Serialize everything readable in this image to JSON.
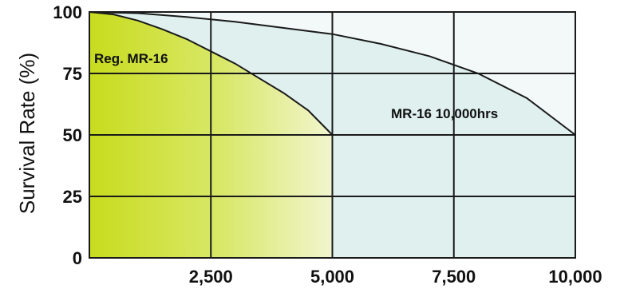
{
  "chart_data": {
    "type": "area",
    "title": "",
    "xlabel": "",
    "ylabel": "Survival Rate (%)",
    "xlim": [
      0,
      10000
    ],
    "ylim": [
      0,
      100
    ],
    "grid": true,
    "x_ticks": [
      2500,
      5000,
      7500,
      10000
    ],
    "x_tick_labels": [
      "2,500",
      "5,000",
      "7,500",
      "10,000"
    ],
    "y_ticks": [
      100,
      75,
      50,
      25,
      0
    ],
    "y_tick_labels": [
      "100",
      "75",
      "50",
      "25",
      "0"
    ],
    "series": [
      {
        "name": "MR-16 10,000hrs",
        "color": "#dff0ee",
        "x": [
          0,
          1000,
          2000,
          3000,
          4000,
          5000,
          6000,
          7000,
          8000,
          9000,
          10000
        ],
        "values": [
          100,
          99.5,
          98,
          96,
          93.5,
          91,
          87,
          82,
          75,
          65,
          50
        ]
      },
      {
        "name": "Reg. MR-16",
        "color": "#c8dc1e",
        "x": [
          0,
          500,
          1000,
          1500,
          2000,
          2500,
          3000,
          3500,
          4000,
          4500,
          5000
        ],
        "values": [
          100,
          99,
          96.5,
          93,
          89,
          84,
          79,
          73,
          67,
          60,
          50
        ]
      }
    ]
  }
}
